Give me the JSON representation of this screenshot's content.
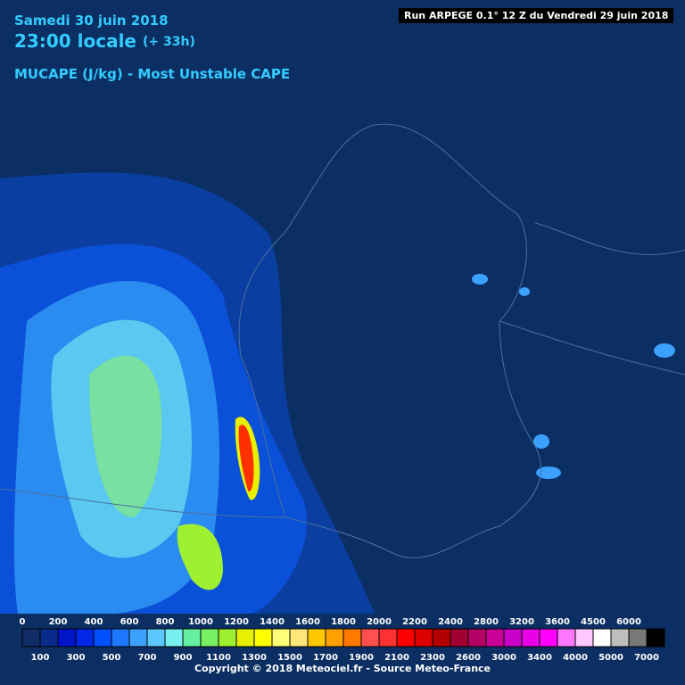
{
  "header": {
    "date": "Samedi 30 juin 2018",
    "time": "23:00 locale",
    "lead": "(+ 33h)",
    "parameter": "MUCAPE (J/kg) - Most Unstable CAPE",
    "run": "Run ARPEGE 0.1° 12 Z du Vendredi 29 juin 2018"
  },
  "legend": {
    "top_labels": [
      "0",
      "200",
      "400",
      "600",
      "800",
      "1000",
      "1200",
      "1400",
      "1600",
      "1800",
      "2000",
      "2200",
      "2400",
      "2800",
      "3200",
      "3600",
      "4500",
      "6000"
    ],
    "bottom_labels": [
      "100",
      "300",
      "500",
      "700",
      "900",
      "1100",
      "1300",
      "1500",
      "1700",
      "1900",
      "2100",
      "2300",
      "2600",
      "3000",
      "3400",
      "4000",
      "5000",
      "7000"
    ],
    "colors": [
      "#102d66",
      "#0a2a8c",
      "#0014c8",
      "#0028e6",
      "#0050ff",
      "#1e78ff",
      "#3ca0ff",
      "#5ac8ff",
      "#78f0f0",
      "#64f0a0",
      "#78f064",
      "#a0f032",
      "#e6f000",
      "#ffff00",
      "#ffff78",
      "#ffe678",
      "#ffc800",
      "#ffa000",
      "#ff7800",
      "#ff5050",
      "#ff3232",
      "#ff0000",
      "#dc0000",
      "#b40000",
      "#a00032",
      "#b40064",
      "#c80096",
      "#c800c8",
      "#e600e6",
      "#ff00ff",
      "#ff78ff",
      "#ffc8ff",
      "#ffffff",
      "#bebebe",
      "#787878",
      "#000000"
    ]
  },
  "footer": "Copyright © 2018 Meteociel.fr - Source Meteo-France"
}
